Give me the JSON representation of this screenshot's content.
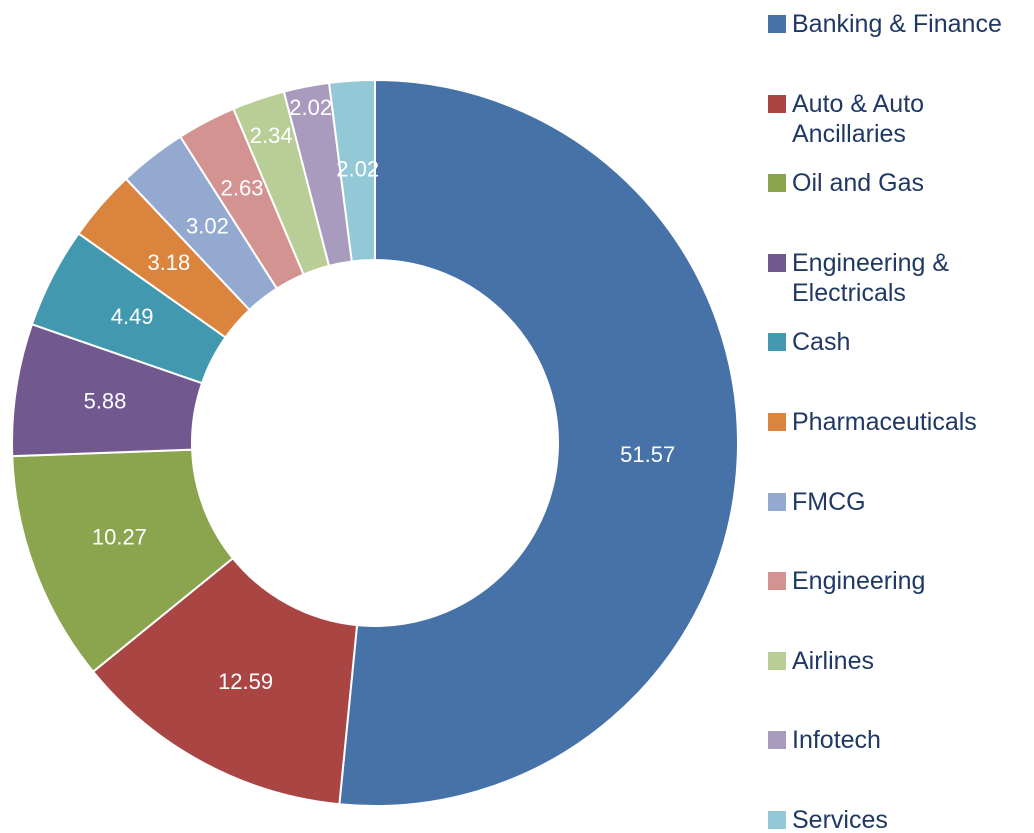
{
  "chart_data": {
    "type": "donut",
    "categories": [
      "Banking & Finance",
      "Auto & Auto Ancillaries",
      "Oil and Gas",
      "Engineering & Electricals",
      "Cash",
      "Pharmaceuticals",
      "FMCG",
      "Engineering",
      "Airlines",
      "Infotech",
      "Services"
    ],
    "values": [
      51.57,
      12.59,
      10.27,
      5.88,
      4.49,
      3.18,
      3.02,
      2.63,
      2.34,
      2.02,
      2.02
    ],
    "colors": [
      "#4672A8",
      "#A94543",
      "#8BA54F",
      "#71588F",
      "#4299AF",
      "#DB843D",
      "#93A9D0",
      "#D29391",
      "#B9CE97",
      "#A99BBD",
      "#93C8D6"
    ],
    "legend": "right"
  }
}
